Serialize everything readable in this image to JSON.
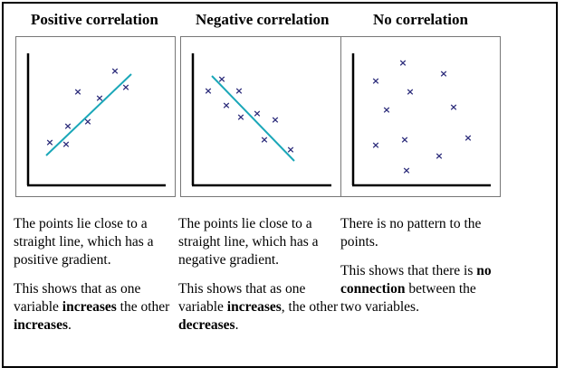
{
  "panels": [
    {
      "title": "Positive correlation",
      "description_1": "The points lie close to a straight line, which has a positive gradient.",
      "description_2_parts": [
        "This shows that as one variable ",
        "increases",
        " the other ",
        "increases",
        "."
      ]
    },
    {
      "title": "Negative correlation",
      "description_1": "The points lie close to a straight line, which has a negative gradient.",
      "description_2_parts": [
        "This shows that as one variable ",
        "increases",
        ", the other ",
        "decreases",
        "."
      ]
    },
    {
      "title": "No correlation",
      "description_1": "There is no pattern to the points.",
      "description_2_parts": [
        "This shows that there is ",
        "no connection",
        " between the two variables.",
        "",
        ""
      ]
    }
  ],
  "colors": {
    "point": "#2b2b7a",
    "trend_line": "#1aa7b8",
    "axis": "#000000",
    "panel_border": "#777777"
  },
  "marker": "×"
}
